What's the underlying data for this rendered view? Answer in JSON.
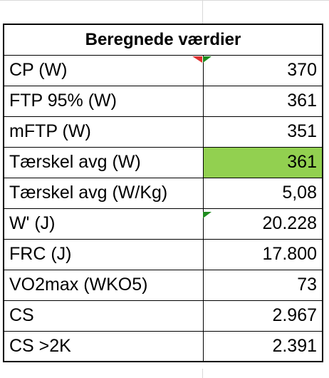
{
  "table": {
    "title": "Beregnede værdier",
    "rows": [
      [
        "CP (W)",
        "370"
      ],
      [
        "FTP 95% (W)",
        "361"
      ],
      [
        "mFTP (W)",
        "351"
      ],
      [
        "Tærskel avg (W)",
        "361"
      ],
      [
        "Tærskel avg (W/Kg)",
        "5,08"
      ],
      [
        "W' (J)",
        "20.228"
      ],
      [
        "FRC (J)",
        "17.800"
      ],
      [
        "VO2max (WKO5)",
        "73"
      ],
      [
        "CS",
        "2.967"
      ],
      [
        "CS >2K",
        "2.391"
      ]
    ]
  }
}
